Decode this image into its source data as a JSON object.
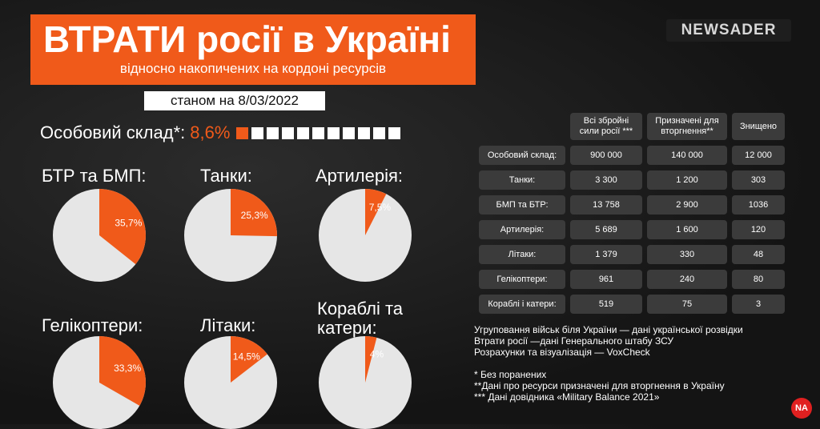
{
  "header": {
    "title": "ВТРАТИ росії в Україні",
    "subtitle": "відносно накопичених на кордоні ресурсів",
    "date": "станом на 8/03/2022",
    "logo": "NEWSADER"
  },
  "personnel": {
    "label": "Особовий склад*:",
    "value": "8,6%",
    "filled": 1,
    "total": 11
  },
  "colors": {
    "accent": "#f05a1a",
    "pie_base": "#e6e6e6",
    "cell": "#3b3b3b"
  },
  "chart_data": [
    {
      "type": "pie",
      "title": "БТР та БМП:",
      "value": 35.7,
      "label": "35,7%"
    },
    {
      "type": "pie",
      "title": "Танки:",
      "value": 25.3,
      "label": "25,3%"
    },
    {
      "type": "pie",
      "title": "Артилерія:",
      "value": 7.5,
      "label": "7,5%"
    },
    {
      "type": "pie",
      "title": "Гелікоптери:",
      "value": 33.3,
      "label": "33,3%"
    },
    {
      "type": "pie",
      "title": "Літаки:",
      "value": 14.5,
      "label": "14,5%"
    },
    {
      "type": "pie",
      "title": "Кораблі та катери:",
      "value": 4,
      "label": "4%"
    }
  ],
  "table": {
    "headers": [
      "Всі збройні сили росії ***",
      "Призначені для вторгнення**",
      "Знищено"
    ],
    "rows": [
      {
        "label": "Особовий склад:",
        "values": [
          "900 000",
          "140 000",
          "12 000"
        ]
      },
      {
        "label": "Танки:",
        "values": [
          "3 300",
          "1 200",
          "303"
        ]
      },
      {
        "label": "БМП та БТР:",
        "values": [
          "13 758",
          "2 900",
          "1036"
        ]
      },
      {
        "label": "Артилерія:",
        "values": [
          "5 689",
          "1 600",
          "120"
        ]
      },
      {
        "label": "Літаки:",
        "values": [
          "1 379",
          "330",
          "48"
        ]
      },
      {
        "label": "Гелікоптери:",
        "values": [
          "961",
          "240",
          "80"
        ]
      },
      {
        "label": "Кораблі і катери:",
        "values": [
          "519",
          "75",
          "3"
        ]
      }
    ]
  },
  "sources": [
    "Угруповання військ біля України  — дані української розвідки",
    "Втрати росії —дані Генерального штабу ЗСУ",
    "Розрахунки та візуалізація — VoxCheck"
  ],
  "notes": [
    "* Без поранених",
    "**Дані про ресурси призначені для вторгнення в Україну",
    "*** Дані довідника «Military Balance 2021»"
  ],
  "badge": "NA"
}
